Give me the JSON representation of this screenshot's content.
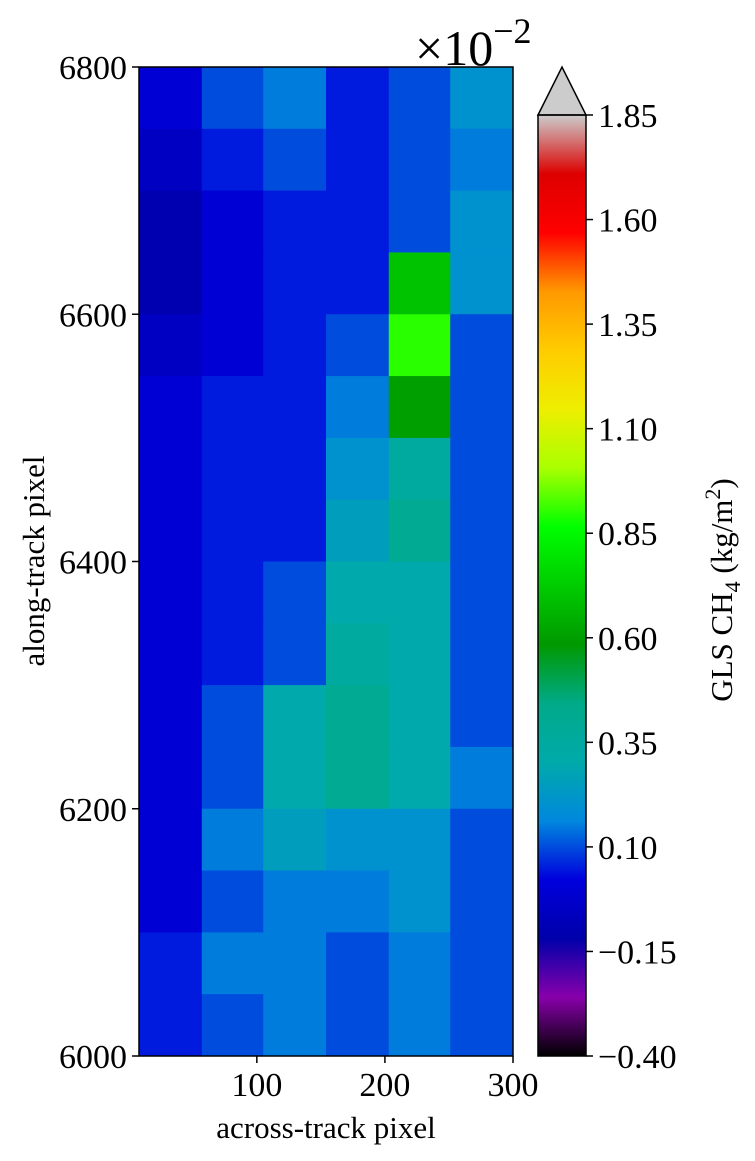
{
  "chart_data": {
    "type": "heatmap",
    "x_label": "across-track pixel",
    "y_label": "along-track pixel",
    "xlim": [
      8,
      300
    ],
    "xticks": [
      100,
      200,
      300
    ],
    "ylim": [
      6000,
      6800
    ],
    "yticks": [
      6000,
      6200,
      6400,
      6600,
      6800
    ],
    "x_bins": [
      8,
      57,
      105,
      154,
      203,
      251,
      300
    ],
    "y_bins": [
      6800,
      6750,
      6700,
      6650,
      6600,
      6550,
      6500,
      6450,
      6400,
      6350,
      6300,
      6250,
      6200,
      6150,
      6100,
      6050,
      6000
    ],
    "values": [
      [
        0.0,
        0.1,
        0.15,
        0.05,
        0.1,
        0.2
      ],
      [
        -0.05,
        0.05,
        0.1,
        0.05,
        0.1,
        0.15
      ],
      [
        -0.1,
        0.0,
        0.05,
        0.05,
        0.1,
        0.2
      ],
      [
        -0.1,
        0.0,
        0.05,
        0.05,
        0.7,
        0.2
      ],
      [
        -0.05,
        0.0,
        0.05,
        0.1,
        0.9,
        0.1
      ],
      [
        0.0,
        0.05,
        0.05,
        0.15,
        0.6,
        0.1
      ],
      [
        0.0,
        0.05,
        0.05,
        0.2,
        0.35,
        0.1
      ],
      [
        0.0,
        0.05,
        0.05,
        0.25,
        0.4,
        0.1
      ],
      [
        0.0,
        0.05,
        0.1,
        0.3,
        0.3,
        0.1
      ],
      [
        0.0,
        0.05,
        0.1,
        0.35,
        0.3,
        0.1
      ],
      [
        0.0,
        0.1,
        0.3,
        0.4,
        0.3,
        0.1
      ],
      [
        0.0,
        0.1,
        0.3,
        0.4,
        0.3,
        0.15
      ],
      [
        0.0,
        0.15,
        0.25,
        0.2,
        0.2,
        0.1
      ],
      [
        0.0,
        0.1,
        0.15,
        0.15,
        0.2,
        0.1
      ],
      [
        0.05,
        0.15,
        0.15,
        0.1,
        0.15,
        0.1
      ],
      [
        0.05,
        0.1,
        0.15,
        0.1,
        0.15,
        0.1
      ]
    ],
    "zlim": [
      -0.4,
      1.85
    ],
    "colormap": [
      "#000000",
      "#8800aa",
      "#0000aa",
      "#0000dd",
      "#0088dd",
      "#00aaaa",
      "#00aa88",
      "#009900",
      "#00cc00",
      "#00ff00",
      "#aaff00",
      "#eeee00",
      "#ffcc00",
      "#ff9900",
      "#ff0000",
      "#dd0000",
      "#cccccc"
    ],
    "extend_color": "#cccccc",
    "colorbar_ticks": [
      {
        "value": -0.4,
        "label": "−0.40"
      },
      {
        "value": -0.15,
        "label": "−0.15"
      },
      {
        "value": 0.1,
        "label": "0.10"
      },
      0.35,
      {
        "value": 0.6,
        "label": "0.60"
      },
      0.85,
      {
        "value": 1.1,
        "label": "1.10"
      },
      1.35,
      {
        "value": 1.6,
        "label": "1.60"
      },
      1.85
    ],
    "colorbar_offset": {
      "base": "×10",
      "exponent": "−2"
    },
    "colorbar_label": [
      "GLS CH",
      "4",
      " (kg/m",
      "2",
      ")"
    ]
  }
}
